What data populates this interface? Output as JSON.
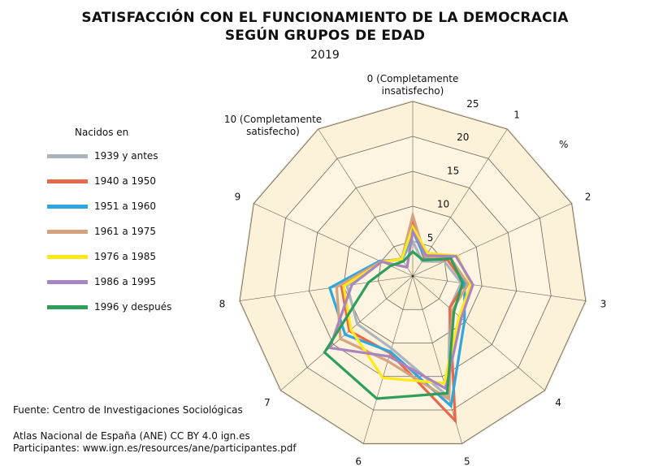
{
  "chart_data": {
    "type": "radar",
    "title_line1": "SATISFACCIÓN CON EL FUNCIONAMIENTO DE LA DEMOCRACIA",
    "title_line2": "SEGÚN GRUPOS DE EDAD",
    "subtitle": "2019",
    "unit_label": "%",
    "categories": [
      "0 (Completamente insatisfecho)",
      "1",
      "2",
      "3",
      "4",
      "5",
      "6",
      "7",
      "8",
      "9",
      "10 (Completamente satisfecho)"
    ],
    "radial_ticks": [
      "5",
      "10",
      "15",
      "20",
      "25"
    ],
    "rmax": 25,
    "legend_title": "Nacidos en",
    "legend_placement": "left",
    "series": [
      {
        "name": "1939 y antes",
        "color": "#a9b4bd",
        "values": [
          5,
          2.5,
          5,
          7,
          7,
          18,
          10.8,
          10.5,
          9.5,
          5,
          2.9
        ]
      },
      {
        "name": "1940 a 1950",
        "color": "#e8694a",
        "values": [
          7.5,
          3,
          5.5,
          7.5,
          7,
          21.6,
          11.5,
          12,
          10.3,
          5,
          2.9
        ]
      },
      {
        "name": "1951 a 1960",
        "color": "#2fa6de",
        "values": [
          6.4,
          3.2,
          6,
          7.5,
          9.8,
          19.4,
          11.3,
          12.8,
          12,
          5.2,
          2.8
        ]
      },
      {
        "name": "1961 a 1975",
        "color": "#d4a27e",
        "values": [
          8.7,
          3.3,
          6,
          8,
          7.5,
          18.4,
          12.7,
          13.7,
          11,
          5,
          2.9
        ]
      },
      {
        "name": "1976 a 1985",
        "color": "#ffe81a",
        "values": [
          7,
          3.9,
          7,
          8.4,
          8.8,
          16,
          15.2,
          11.7,
          10,
          4.8,
          2.9
        ]
      },
      {
        "name": "1986 a 1995",
        "color": "#a885c0",
        "values": [
          6.4,
          3.5,
          6.8,
          8.7,
          9.2,
          16.8,
          12,
          15.7,
          8.8,
          4.9,
          1.5
        ]
      },
      {
        "name": "1996 y después",
        "color": "#2e9e5a",
        "values": [
          3.5,
          2.7,
          6,
          7.2,
          7.8,
          17.5,
          18.3,
          16.7,
          6.4,
          3.5,
          2.5
        ]
      }
    ]
  },
  "footer": {
    "source": "Fuente: Centro de Investigaciones Sociológicas",
    "credit": "Atlas Nacional de España (ANE) CC BY 4.0 ign.es",
    "participants": "Participantes: www.ign.es/resources/ane/participantes.pdf"
  }
}
